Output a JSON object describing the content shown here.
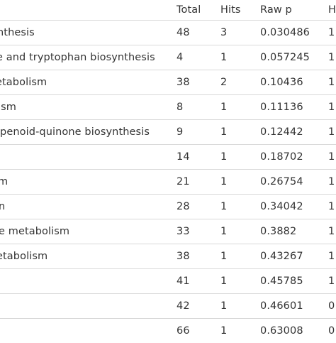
{
  "table": {
    "headers": [
      "",
      "Total",
      "Hits",
      "Raw p",
      "H"
    ],
    "rows": [
      {
        "name": "nthesis",
        "total": "48",
        "hits": "3",
        "raw_p": "0.030486",
        "holm": "1"
      },
      {
        "name": "e and tryptophan biosynthesis",
        "total": "4",
        "hits": "1",
        "raw_p": "0.057245",
        "holm": "1"
      },
      {
        "name": "etabolism",
        "total": "38",
        "hits": "2",
        "raw_p": "0.10436",
        "holm": "1"
      },
      {
        "name": "ism",
        "total": "8",
        "hits": "1",
        "raw_p": "0.11136",
        "holm": "1"
      },
      {
        "name": "rpenoid-quinone biosynthesis",
        "total": "9",
        "hits": "1",
        "raw_p": "0.12442",
        "holm": "1"
      },
      {
        "name": "",
        "total": "14",
        "hits": "1",
        "raw_p": "0.18702",
        "holm": "1"
      },
      {
        "name": "m",
        "total": "21",
        "hits": "1",
        "raw_p": "0.26754",
        "holm": "1"
      },
      {
        "name": "n",
        "total": "28",
        "hits": "1",
        "raw_p": "0.34042",
        "holm": "1"
      },
      {
        "name": "e metabolism",
        "total": "33",
        "hits": "1",
        "raw_p": "0.3882",
        "holm": "1"
      },
      {
        "name": "etabolism",
        "total": "38",
        "hits": "1",
        "raw_p": "0.43267",
        "holm": "1"
      },
      {
        "name": "",
        "total": "41",
        "hits": "1",
        "raw_p": "0.45785",
        "holm": "1"
      },
      {
        "name": "",
        "total": "42",
        "hits": "1",
        "raw_p": "0.46601",
        "holm": "0"
      },
      {
        "name": "",
        "total": "66",
        "hits": "1",
        "raw_p": "0.63008",
        "holm": "0"
      }
    ]
  }
}
